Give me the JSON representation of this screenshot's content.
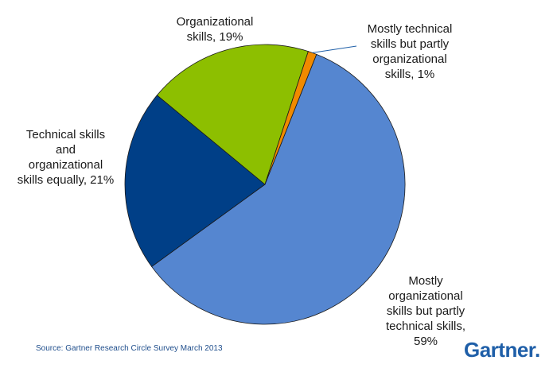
{
  "chart_data": {
    "type": "pie",
    "title": "",
    "slices": [
      {
        "label": "Mostly organizational skills but partly technical skills",
        "display": "Mostly\norganizational\nskills but partly\ntechnical skills,\n59%",
        "value": 59,
        "color": "#5586D0"
      },
      {
        "label": "Technical skills and organizational skills equally",
        "display": "Technical skills\nand\norganizational\nskills equally, 21%",
        "value": 21,
        "color": "#003F87"
      },
      {
        "label": "Organizational skills",
        "display": "Organizational\nskills, 19%",
        "value": 19,
        "color": "#8DBF00"
      },
      {
        "label": "Mostly technical skills but partly organizational skills",
        "display": "Mostly technical\nskills but partly\norganizational\nskills, 1%",
        "value": 1,
        "color": "#F08A00"
      }
    ]
  },
  "footer": {
    "source": "Source: Gartner Research Circle Survey March 2013",
    "logo": "Gartner."
  }
}
